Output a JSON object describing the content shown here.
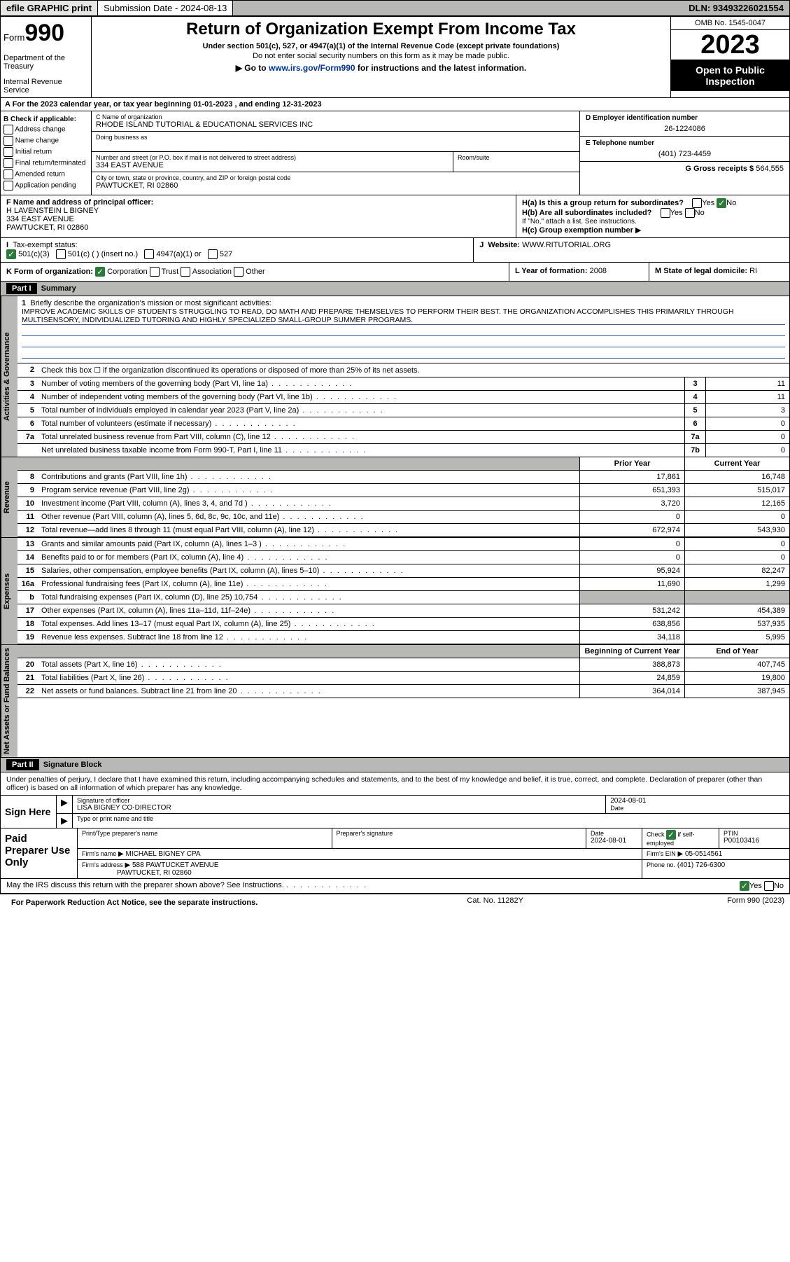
{
  "topbar": {
    "efile": "efile GRAPHIC print",
    "subDateLabel": "Submission Date - 2024-08-13",
    "dln": "DLN: 93493226021554"
  },
  "header": {
    "formWord": "Form",
    "formNum": "990",
    "dept": "Department of the Treasury",
    "irs": "Internal Revenue Service",
    "title": "Return of Organization Exempt From Income Tax",
    "sub1": "Under section 501(c), 527, or 4947(a)(1) of the Internal Revenue Code (except private foundations)",
    "sub2": "Do not enter social security numbers on this form as it may be made public.",
    "goto": "Go to www.irs.gov/Form990 for instructions and the latest information.",
    "gotoLink": "www.irs.gov/Form990",
    "omb": "OMB No. 1545-0047",
    "year": "2023",
    "openPublic": "Open to Public Inspection"
  },
  "rowA": "A For the 2023 calendar year, or tax year beginning 01-01-2023   , and ending 12-31-2023",
  "boxB": {
    "label": "B Check if applicable:",
    "items": [
      "Address change",
      "Name change",
      "Initial return",
      "Final return/terminated",
      "Amended return",
      "Application pending"
    ]
  },
  "boxC": {
    "nameLabel": "C Name of organization",
    "name": "RHODE ISLAND TUTORIAL & EDUCATIONAL SERVICES INC",
    "dbaLabel": "Doing business as",
    "streetLabel": "Number and street (or P.O. box if mail is not delivered to street address)",
    "roomLabel": "Room/suite",
    "street": "334 EAST AVENUE",
    "cityLabel": "City or town, state or province, country, and ZIP or foreign postal code",
    "city": "PAWTUCKET, RI  02860"
  },
  "boxD": {
    "label": "D Employer identification number",
    "val": "26-1224086"
  },
  "boxE": {
    "label": "E Telephone number",
    "val": "(401) 723-4459"
  },
  "boxG": {
    "label": "G Gross receipts $",
    "val": "564,555"
  },
  "boxF": {
    "label": "F Name and address of principal officer:",
    "name": "H LAVENSTEIN L BIGNEY",
    "street": "334 EAST AVENUE",
    "city": "PAWTUCKET, RI  02860"
  },
  "boxH": {
    "ha": "H(a)  Is this a group return for subordinates?",
    "hb": "H(b)  Are all subordinates included?",
    "hbNote": "If \"No,\" attach a list. See instructions.",
    "hc": "H(c)  Group exemption number",
    "yes": "Yes",
    "no": "No"
  },
  "boxI": {
    "label": "Tax-exempt status:",
    "o1": "501(c)(3)",
    "o2": "501(c) (   ) (insert no.)",
    "o3": "4947(a)(1) or",
    "o4": "527"
  },
  "boxJ": {
    "label": "Website:",
    "val": "WWW.RITUTORIAL.ORG"
  },
  "boxK": {
    "label": "K Form of organization:",
    "corp": "Corporation",
    "trust": "Trust",
    "assoc": "Association",
    "other": "Other"
  },
  "boxL": {
    "label": "L Year of formation:",
    "val": "2008"
  },
  "boxM": {
    "label": "M State of legal domicile:",
    "val": "RI"
  },
  "partI": {
    "hdr": "Part I",
    "title": "Summary",
    "tab1": "Activities & Governance",
    "tab2": "Revenue",
    "tab3": "Expenses",
    "tab4": "Net Assets or Fund Balances",
    "l1label": "Briefly describe the organization's mission or most significant activities:",
    "l1text": "IMPROVE ACADEMIC SKILLS OF STUDENTS STRUGGLING TO READ, DO MATH AND PREPARE THEMSELVES TO PERFORM THEIR BEST. THE ORGANIZATION ACCOMPLISHES THIS PRIMARILY THROUGH MULTISENSORY, INDIVIDUALIZED TUTORING AND HIGHLY SPECIALIZED SMALL-GROUP SUMMER PROGRAMS.",
    "l2": "Check this box ☐ if the organization discontinued its operations or disposed of more than 25% of its net assets.",
    "lines_gov": [
      {
        "n": "3",
        "d": "Number of voting members of the governing body (Part VI, line 1a)",
        "box": "3",
        "v": "11"
      },
      {
        "n": "4",
        "d": "Number of independent voting members of the governing body (Part VI, line 1b)",
        "box": "4",
        "v": "11"
      },
      {
        "n": "5",
        "d": "Total number of individuals employed in calendar year 2023 (Part V, line 2a)",
        "box": "5",
        "v": "3"
      },
      {
        "n": "6",
        "d": "Total number of volunteers (estimate if necessary)",
        "box": "6",
        "v": "0"
      },
      {
        "n": "7a",
        "d": "Total unrelated business revenue from Part VIII, column (C), line 12",
        "box": "7a",
        "v": "0"
      },
      {
        "n": "",
        "d": "Net unrelated business taxable income from Form 990-T, Part I, line 11",
        "box": "7b",
        "v": "0"
      }
    ],
    "hdr_prior": "Prior Year",
    "hdr_current": "Current Year",
    "lines_rev": [
      {
        "n": "8",
        "d": "Contributions and grants (Part VIII, line 1h)",
        "p": "17,861",
        "c": "16,748"
      },
      {
        "n": "9",
        "d": "Program service revenue (Part VIII, line 2g)",
        "p": "651,393",
        "c": "515,017"
      },
      {
        "n": "10",
        "d": "Investment income (Part VIII, column (A), lines 3, 4, and 7d )",
        "p": "3,720",
        "c": "12,165"
      },
      {
        "n": "11",
        "d": "Other revenue (Part VIII, column (A), lines 5, 6d, 8c, 9c, 10c, and 11e)",
        "p": "0",
        "c": "0"
      },
      {
        "n": "12",
        "d": "Total revenue—add lines 8 through 11 (must equal Part VIII, column (A), line 12)",
        "p": "672,974",
        "c": "543,930"
      }
    ],
    "lines_exp": [
      {
        "n": "13",
        "d": "Grants and similar amounts paid (Part IX, column (A), lines 1–3 )",
        "p": "0",
        "c": "0"
      },
      {
        "n": "14",
        "d": "Benefits paid to or for members (Part IX, column (A), line 4)",
        "p": "0",
        "c": "0"
      },
      {
        "n": "15",
        "d": "Salaries, other compensation, employee benefits (Part IX, column (A), lines 5–10)",
        "p": "95,924",
        "c": "82,247"
      },
      {
        "n": "16a",
        "d": "Professional fundraising fees (Part IX, column (A), line 11e)",
        "p": "11,690",
        "c": "1,299"
      },
      {
        "n": "b",
        "d": "Total fundraising expenses (Part IX, column (D), line 25) 10,754",
        "p": "",
        "c": "",
        "shade": true
      },
      {
        "n": "17",
        "d": "Other expenses (Part IX, column (A), lines 11a–11d, 11f–24e)",
        "p": "531,242",
        "c": "454,389"
      },
      {
        "n": "18",
        "d": "Total expenses. Add lines 13–17 (must equal Part IX, column (A), line 25)",
        "p": "638,856",
        "c": "537,935"
      },
      {
        "n": "19",
        "d": "Revenue less expenses. Subtract line 18 from line 12",
        "p": "34,118",
        "c": "5,995"
      }
    ],
    "hdr_begin": "Beginning of Current Year",
    "hdr_end": "End of Year",
    "lines_net": [
      {
        "n": "20",
        "d": "Total assets (Part X, line 16)",
        "p": "388,873",
        "c": "407,745"
      },
      {
        "n": "21",
        "d": "Total liabilities (Part X, line 26)",
        "p": "24,859",
        "c": "19,800"
      },
      {
        "n": "22",
        "d": "Net assets or fund balances. Subtract line 21 from line 20",
        "p": "364,014",
        "c": "387,945"
      }
    ]
  },
  "partII": {
    "hdr": "Part II",
    "title": "Signature Block",
    "declaration": "Under penalties of perjury, I declare that I have examined this return, including accompanying schedules and statements, and to the best of my knowledge and belief, it is true, correct, and complete. Declaration of preparer (other than officer) is based on all information of which preparer has any knowledge.",
    "signHere": "Sign Here",
    "sigOfficer": "Signature of officer",
    "sigDate": "Date",
    "sigDateVal": "2024-08-01",
    "officerName": "LISA BIGNEY CO-DIRECTOR",
    "typeName": "Type or print name and title",
    "paid": "Paid Preparer Use Only",
    "prepName": "Print/Type preparer's name",
    "prepSig": "Preparer's signature",
    "prepDate": "Date",
    "prepDateVal": "2024-08-01",
    "checkSelf": "Check ☑ if self-employed",
    "ptin": "PTIN",
    "ptinVal": "P00103416",
    "firmName": "Firm's name",
    "firmNameVal": "MICHAEL BIGNEY CPA",
    "firmEin": "Firm's EIN",
    "firmEinVal": "05-0514561",
    "firmAddr": "Firm's address",
    "firmAddrVal": "588 PAWTUCKET AVENUE",
    "firmCity": "PAWTUCKET, RI  02860",
    "phone": "Phone no.",
    "phoneVal": "(401) 726-6300",
    "discuss": "May the IRS discuss this return with the preparer shown above? See Instructions."
  },
  "footer": {
    "pwra": "For Paperwork Reduction Act Notice, see the separate instructions.",
    "cat": "Cat. No. 11282Y",
    "form": "Form 990 (2023)"
  }
}
